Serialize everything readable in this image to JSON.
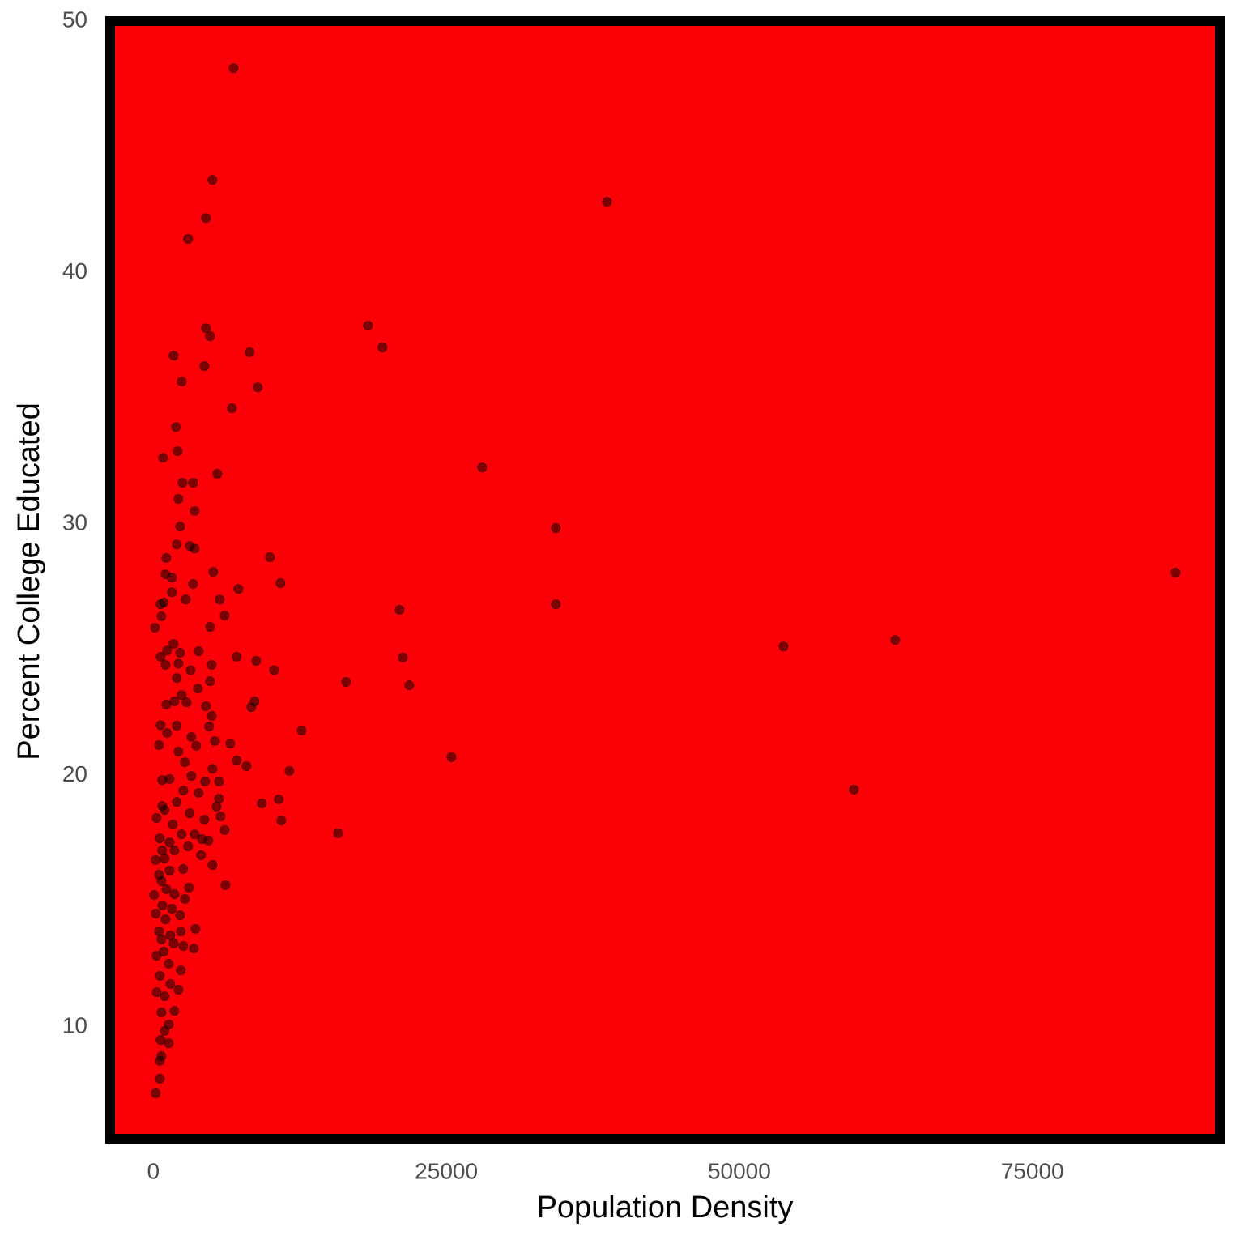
{
  "chart_data": {
    "type": "scatter",
    "x_label": "Population Density",
    "y_label": "Percent College Educated",
    "x": [
      6842,
      5045,
      38701,
      4492,
      2972,
      18314,
      19558,
      4492,
      4838,
      8224,
      1728,
      4354,
      8915,
      2419,
      6703,
      1935,
      2073,
      829,
      28058,
      5460,
      2488,
      3386,
      2142,
      3525,
      34347,
      2281,
      3110,
      3525,
      2004,
      1106,
      9952,
      87215,
      5114,
      1037,
      1589,
      10850,
      3386,
      7256,
      1589,
      5667,
      2764,
      898,
      622,
      21009,
      34347,
      691,
      6082,
      138,
      4838,
      63303,
      1728,
      53766,
      2281,
      3870,
      1175,
      622,
      7118,
      21285,
      8777,
      4976,
      2142,
      3179,
      10297,
      1037,
      4838,
      16448,
      21838,
      2004,
      3801,
      8638,
      8362,
      2833,
      4492,
      1106,
      1797,
      2419,
      4976,
      2004,
      4768,
      12647,
      622,
      1175,
      5252,
      3248,
      6565,
      3663,
      484,
      2142,
      2695,
      25432,
      7118,
      7947,
      11610,
      5045,
      3248,
      760,
      1382,
      5598,
      4423,
      59779,
      2557,
      3870,
      5598,
      10712,
      9261,
      2004,
      760,
      5391,
      3110,
      5736,
      967,
      10919,
      4354,
      276,
      1659,
      6082,
      15757,
      3525,
      2419,
      553,
      4146,
      4700,
      1382,
      2972,
      760,
      1797,
      4077,
      967,
      207,
      5045,
      2557,
      1382,
      484,
      691,
      6151,
      3041,
      1106,
      1797,
      69,
      2695,
      760,
      1589,
      207,
      2281,
      1037,
      3594,
      484,
      2350,
      1451,
      691,
      1728,
      3456,
      2557,
      898,
      276,
      1313,
      2350,
      553,
      1451,
      2142,
      276,
      967,
      1797,
      691,
      1313,
      967,
      622,
      1313,
      691,
      553,
      553,
      207
    ],
    "values": [
      48.13,
      43.69,
      42.82,
      42.17,
      41.34,
      37.89,
      37.02,
      37.79,
      37.47,
      36.83,
      36.7,
      36.28,
      35.44,
      35.67,
      34.61,
      33.86,
      32.9,
      32.64,
      32.25,
      32.0,
      31.64,
      31.64,
      31.0,
      30.52,
      29.84,
      29.9,
      29.13,
      29.03,
      29.19,
      28.65,
      28.68,
      28.07,
      28.1,
      28.0,
      27.87,
      27.65,
      27.62,
      27.42,
      27.29,
      27.0,
      27.0,
      26.88,
      26.81,
      26.59,
      26.81,
      26.33,
      26.36,
      25.88,
      25.91,
      25.39,
      25.23,
      25.13,
      24.88,
      24.94,
      24.97,
      24.72,
      24.72,
      24.69,
      24.56,
      24.4,
      24.45,
      24.19,
      24.19,
      24.4,
      23.75,
      23.72,
      23.59,
      23.88,
      23.46,
      22.95,
      22.72,
      22.91,
      22.75,
      22.82,
      22.95,
      23.2,
      22.37,
      21.98,
      21.95,
      21.79,
      22.0,
      21.69,
      21.37,
      21.53,
      21.27,
      21.18,
      21.21,
      20.95,
      20.53,
      20.73,
      20.6,
      20.37,
      20.18,
      20.27,
      19.98,
      19.82,
      19.86,
      19.76,
      19.76,
      19.44,
      19.4,
      19.31,
      19.08,
      19.05,
      18.89,
      18.95,
      18.79,
      18.76,
      18.5,
      18.37,
      18.63,
      18.21,
      18.24,
      18.31,
      18.05,
      17.83,
      17.7,
      17.66,
      17.66,
      17.5,
      17.47,
      17.41,
      17.34,
      17.18,
      17.02,
      17.02,
      16.83,
      16.7,
      16.64,
      16.44,
      16.28,
      16.22,
      16.06,
      15.8,
      15.64,
      15.54,
      15.48,
      15.28,
      15.25,
      15.09,
      14.83,
      14.7,
      14.51,
      14.44,
      14.28,
      13.9,
      13.8,
      13.8,
      13.64,
      13.48,
      13.32,
      13.12,
      13.22,
      13.0,
      12.83,
      12.51,
      12.25,
      12.03,
      11.71,
      11.48,
      11.38,
      11.22,
      10.64,
      10.58,
      10.1,
      9.84,
      9.48,
      9.35,
      8.84,
      8.65,
      7.94,
      7.36
    ],
    "color": "#000000",
    "alpha": 0.5,
    "background": "#fc0007",
    "xlim": [
      -4100,
      91400
    ],
    "ylim": [
      5.36,
      50.2
    ],
    "xticks": [
      0,
      25000,
      50000,
      75000
    ],
    "yticks": [
      10,
      20,
      30,
      40,
      50
    ],
    "grid": false
  }
}
